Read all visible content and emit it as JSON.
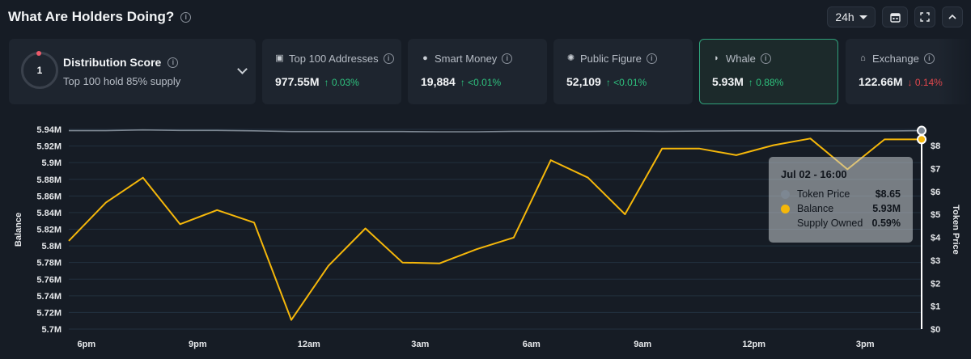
{
  "header": {
    "title": "What Are Holders Doing?",
    "range": "24h"
  },
  "distribution": {
    "score": "1",
    "title": "Distribution Score",
    "subtitle": "Top 100 hold 85% supply"
  },
  "cards": [
    {
      "label": "Top 100 Addresses",
      "value": "977.55M",
      "change": "↑ 0.03%",
      "dir": "up"
    },
    {
      "label": "Smart Money",
      "value": "19,884",
      "change": "↑ <0.01%",
      "dir": "up"
    },
    {
      "label": "Public Figure",
      "value": "52,109",
      "change": "↑ <0.01%",
      "dir": "up"
    },
    {
      "label": "Whale",
      "value": "5.93M",
      "change": "↑ 0.88%",
      "dir": "up"
    },
    {
      "label": "Exchange",
      "value": "122.66M",
      "change": "↓ 0.14%",
      "dir": "down"
    }
  ],
  "tooltip": {
    "title": "Jul 02 - 16:00",
    "rows": [
      {
        "name": "Token Price",
        "value": "$8.65",
        "color": "#7d8792"
      },
      {
        "name": "Balance",
        "value": "5.93M",
        "color": "#f5b70a"
      },
      {
        "name": "Supply Owned",
        "value": "0.59%",
        "color": ""
      }
    ]
  },
  "chart_data": {
    "type": "line",
    "ylabel": "Balance",
    "y2label": "Token Price",
    "x_ticks": [
      "6pm",
      "9pm",
      "12am",
      "3am",
      "6am",
      "9am",
      "12pm",
      "3pm"
    ],
    "ylim": [
      5.7,
      5.94
    ],
    "y_ticks": [
      "5.94M",
      "5.92M",
      "5.9M",
      "5.88M",
      "5.86M",
      "5.84M",
      "5.82M",
      "5.8M",
      "5.78M",
      "5.76M",
      "5.74M",
      "5.72M",
      "5.7M"
    ],
    "y2lim": [
      0,
      8
    ],
    "y2_ticks": [
      "$8",
      "$7",
      "$6",
      "$5",
      "$4",
      "$3",
      "$2",
      "$1",
      "$0"
    ],
    "series": [
      {
        "name": "Balance",
        "axis": "left",
        "color": "#f5b70a",
        "values": [
          5.806,
          5.852,
          5.882,
          5.826,
          5.843,
          5.828,
          5.711,
          5.776,
          5.821,
          5.78,
          5.779,
          5.796,
          5.81,
          5.903,
          5.882,
          5.838,
          5.917,
          5.917,
          5.909,
          5.921,
          5.929,
          5.892,
          5.928,
          5.928
        ]
      },
      {
        "name": "Token Price",
        "axis": "right",
        "color": "#7d8792",
        "values": [
          8.65,
          8.65,
          8.68,
          8.66,
          8.66,
          8.64,
          8.61,
          8.61,
          8.61,
          8.61,
          8.6,
          8.6,
          8.62,
          8.62,
          8.62,
          8.63,
          8.62,
          8.63,
          8.64,
          8.64,
          8.64,
          8.63,
          8.63,
          8.65
        ]
      }
    ]
  }
}
